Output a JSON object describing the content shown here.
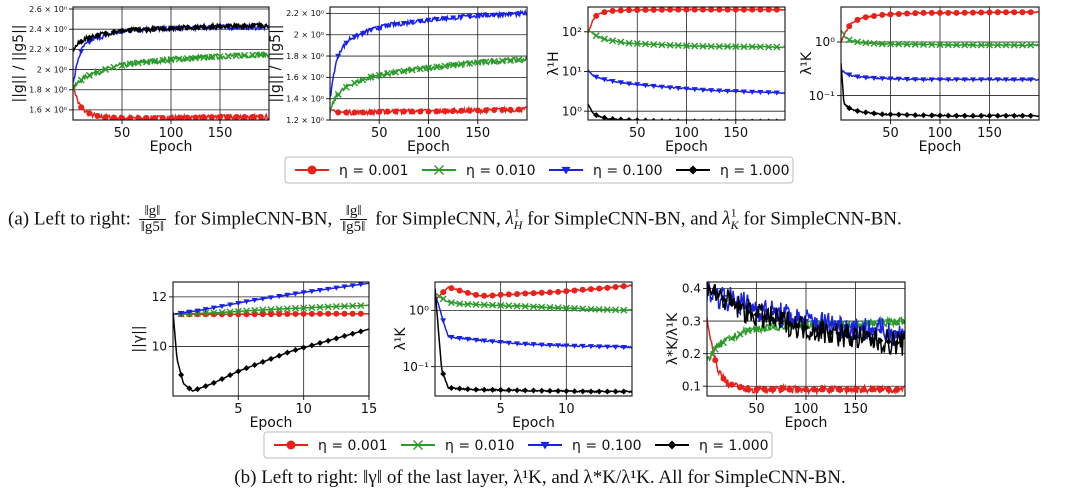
{
  "legend": {
    "entries": [
      {
        "label": "η = 0.001",
        "color": "#e8211a",
        "marker": "circle"
      },
      {
        "label": "η = 0.010",
        "color": "#2a9a2a",
        "marker": "x"
      },
      {
        "label": "η = 0.100",
        "color": "#1a22e6",
        "marker": "triangle-down"
      },
      {
        "label": "η = 1.000",
        "color": "#000000",
        "marker": "diamond"
      }
    ]
  },
  "caption_a": {
    "prefix": "(a) Left to right:",
    "num": "‖g‖",
    "den": "‖g5‖",
    "t1": "for SimpleCNN-BN,",
    "t2": "for SimpleCNN,",
    "lamH": "λ",
    "lamH_sub": "H",
    "lamH_sup": "1",
    "t3": "for SimpleCNN-BN, and",
    "lamK": "λ",
    "lamK_sub": "K",
    "lamK_sup": "1",
    "t4": "for SimpleCNN-BN."
  },
  "caption_b": {
    "text": "(b) Left to right: ‖γ‖ of the last layer, λ¹K, and λ*K/λ¹K. All for SimpleCNN-BN."
  },
  "chart_data": [
    {
      "type": "line",
      "xlabel": "Epoch",
      "ylabel": "||g|| / ||g5||",
      "xlim": [
        0,
        200
      ],
      "ylim": [
        1.5,
        2.62
      ],
      "yscale": "linear",
      "grid": true,
      "xticks": [
        50,
        100,
        150
      ],
      "xtick_labels": [
        "50",
        "100",
        "150"
      ],
      "yticks": [
        1.6,
        1.8,
        2.0,
        2.2,
        2.4,
        2.6
      ],
      "ytick_labels": [
        "1.6 × 10⁰",
        "1.8 × 10⁰",
        "2 × 10⁰",
        "2.2 × 10⁰",
        "2.4 × 10⁰",
        "2.6 × 10⁰"
      ],
      "series": [
        {
          "color": "#e8211a",
          "x": [
            0,
            5,
            10,
            20,
            30,
            50,
            75,
            100,
            150,
            200
          ],
          "y": [
            1.85,
            1.68,
            1.6,
            1.55,
            1.53,
            1.52,
            1.52,
            1.52,
            1.53,
            1.53
          ]
        },
        {
          "color": "#2a9a2a",
          "x": [
            0,
            5,
            10,
            20,
            40,
            60,
            100,
            150,
            200
          ],
          "y": [
            1.8,
            1.87,
            1.91,
            1.96,
            2.02,
            2.06,
            2.1,
            2.13,
            2.15
          ]
        },
        {
          "color": "#1a22e6",
          "x": [
            0,
            5,
            10,
            20,
            40,
            60,
            100,
            150,
            200
          ],
          "y": [
            1.85,
            2.1,
            2.22,
            2.3,
            2.36,
            2.39,
            2.41,
            2.42,
            2.42
          ]
        },
        {
          "color": "#000000",
          "x": [
            0,
            5,
            10,
            20,
            40,
            60,
            100,
            150,
            200
          ],
          "y": [
            2.2,
            2.25,
            2.29,
            2.33,
            2.37,
            2.39,
            2.41,
            2.43,
            2.44
          ]
        }
      ]
    },
    {
      "type": "line",
      "xlabel": "Epoch",
      "ylabel": "||g|| / ||g5||",
      "xlim": [
        0,
        200
      ],
      "ylim": [
        1.2,
        2.26
      ],
      "yscale": "linear",
      "grid": true,
      "xticks": [
        50,
        100,
        150
      ],
      "xtick_labels": [
        "50",
        "100",
        "150"
      ],
      "yticks": [
        1.2,
        1.4,
        1.6,
        1.8,
        2.0,
        2.2
      ],
      "ytick_labels": [
        "1.2 × 10⁰",
        "1.4 × 10⁰",
        "1.6 × 10⁰",
        "1.8 × 10⁰",
        "2 × 10⁰",
        "2.2 × 10⁰"
      ],
      "series": [
        {
          "color": "#e8211a",
          "x": [
            0,
            10,
            30,
            60,
            100,
            150,
            200
          ],
          "y": [
            1.28,
            1.27,
            1.27,
            1.28,
            1.28,
            1.29,
            1.3
          ]
        },
        {
          "color": "#2a9a2a",
          "x": [
            0,
            5,
            10,
            20,
            40,
            60,
            100,
            150,
            200
          ],
          "y": [
            1.28,
            1.4,
            1.46,
            1.53,
            1.6,
            1.64,
            1.69,
            1.74,
            1.77
          ]
        },
        {
          "color": "#1a22e6",
          "x": [
            0,
            5,
            10,
            20,
            40,
            60,
            100,
            150,
            200
          ],
          "y": [
            1.4,
            1.7,
            1.85,
            1.96,
            2.04,
            2.09,
            2.14,
            2.18,
            2.2
          ]
        }
      ]
    },
    {
      "type": "line",
      "xlabel": "Epoch",
      "ylabel": "λ¹H",
      "xlim": [
        0,
        200
      ],
      "ylim": [
        0.6,
        420
      ],
      "yscale": "log",
      "grid": true,
      "xticks": [
        50,
        100,
        150
      ],
      "xtick_labels": [
        "50",
        "100",
        "150"
      ],
      "yticks": [
        1,
        10,
        100
      ],
      "ytick_labels": [
        "10⁰",
        "10¹",
        "10²"
      ],
      "series": [
        {
          "color": "#e8211a",
          "x": [
            0,
            5,
            10,
            20,
            40,
            80,
            120,
            160,
            200
          ],
          "y": [
            90,
            200,
            280,
            330,
            350,
            360,
            360,
            360,
            360
          ]
        },
        {
          "color": "#2a9a2a",
          "x": [
            0,
            10,
            20,
            40,
            80,
            120,
            160,
            200
          ],
          "y": [
            110,
            75,
            62,
            52,
            46,
            43,
            42,
            41
          ]
        },
        {
          "color": "#1a22e6",
          "x": [
            0,
            5,
            10,
            20,
            40,
            80,
            120,
            160,
            200
          ],
          "y": [
            11,
            8,
            7,
            6,
            5,
            4,
            3.4,
            3.1,
            2.9
          ]
        },
        {
          "color": "#000000",
          "x": [
            0,
            5,
            10,
            20,
            40,
            80,
            120,
            160,
            200
          ],
          "y": [
            1.5,
            0.9,
            0.75,
            0.65,
            0.6,
            0.56,
            0.55,
            0.55,
            0.55
          ]
        }
      ]
    },
    {
      "type": "line",
      "xlabel": "Epoch",
      "ylabel": "λ¹K",
      "xlim": [
        0,
        200
      ],
      "ylim": [
        0.035,
        4.5
      ],
      "yscale": "log",
      "grid": true,
      "xticks": [
        50,
        100,
        150
      ],
      "xtick_labels": [
        "50",
        "100",
        "150"
      ],
      "yticks": [
        0.1,
        1
      ],
      "ytick_labels": [
        "10⁻¹",
        "10⁰"
      ],
      "series": [
        {
          "color": "#e8211a",
          "x": [
            0,
            5,
            10,
            20,
            40,
            80,
            120,
            160,
            200
          ],
          "y": [
            1.0,
            1.6,
            2.2,
            2.8,
            3.2,
            3.5,
            3.5,
            3.6,
            3.6
          ]
        },
        {
          "color": "#2a9a2a",
          "x": [
            0,
            5,
            10,
            20,
            40,
            80,
            120,
            160,
            200
          ],
          "y": [
            1.6,
            1.2,
            1.05,
            0.98,
            0.92,
            0.9,
            0.88,
            0.88,
            0.87
          ]
        },
        {
          "color": "#1a22e6",
          "x": [
            0,
            5,
            10,
            20,
            40,
            80,
            120,
            160,
            200
          ],
          "y": [
            0.3,
            0.26,
            0.24,
            0.22,
            0.21,
            0.2,
            0.2,
            0.2,
            0.2
          ]
        },
        {
          "color": "#000000",
          "x": [
            0,
            3,
            10,
            20,
            40,
            80,
            120,
            160,
            200
          ],
          "y": [
            0.4,
            0.07,
            0.055,
            0.05,
            0.045,
            0.043,
            0.042,
            0.042,
            0.042
          ]
        }
      ]
    },
    {
      "type": "line",
      "xlabel": "Epoch",
      "ylabel": "||γ||",
      "xlim": [
        0,
        15
      ],
      "ylim": [
        8.0,
        12.6
      ],
      "yscale": "linear",
      "grid": true,
      "xticks": [
        5,
        10,
        15
      ],
      "xtick_labels": [
        "5",
        "10",
        "15"
      ],
      "yticks": [
        10,
        12
      ],
      "ytick_labels": [
        "10",
        "12"
      ],
      "series": [
        {
          "color": "#e8211a",
          "x": [
            0,
            3,
            6,
            9,
            12,
            15
          ],
          "y": [
            11.3,
            11.3,
            11.3,
            11.31,
            11.32,
            11.32
          ]
        },
        {
          "color": "#2a9a2a",
          "x": [
            0,
            3,
            6,
            9,
            12,
            15
          ],
          "y": [
            11.3,
            11.35,
            11.45,
            11.53,
            11.6,
            11.66
          ]
        },
        {
          "color": "#1a22e6",
          "x": [
            0,
            2,
            4,
            6,
            8,
            10,
            12,
            15
          ],
          "y": [
            11.3,
            11.45,
            11.65,
            11.85,
            12.02,
            12.18,
            12.33,
            12.55
          ]
        },
        {
          "color": "#000000",
          "x": [
            0,
            0.3,
            0.8,
            1.5,
            3,
            5,
            7,
            9,
            11,
            13,
            15
          ],
          "y": [
            11.4,
            9.5,
            8.5,
            8.2,
            8.5,
            9.0,
            9.4,
            9.8,
            10.1,
            10.4,
            10.7
          ]
        }
      ]
    },
    {
      "type": "line",
      "xlabel": "Epoch",
      "ylabel": "λ¹K",
      "xlim": [
        0,
        15
      ],
      "ylim": [
        0.03,
        3.2
      ],
      "yscale": "log",
      "grid": true,
      "xticks": [
        5,
        10
      ],
      "xtick_labels": [
        "5",
        "10"
      ],
      "yticks": [
        0.1,
        1
      ],
      "ytick_labels": [
        "10⁻¹",
        "10⁰"
      ],
      "series": [
        {
          "color": "#e8211a",
          "x": [
            0,
            1,
            2,
            3,
            4,
            5,
            7,
            9,
            11,
            13,
            15
          ],
          "y": [
            1.5,
            2.6,
            2.2,
            1.9,
            1.8,
            1.9,
            2.0,
            2.1,
            2.3,
            2.5,
            2.8
          ]
        },
        {
          "color": "#2a9a2a",
          "x": [
            0,
            1,
            2,
            4,
            6,
            8,
            10,
            12,
            15
          ],
          "y": [
            2.0,
            1.4,
            1.3,
            1.25,
            1.2,
            1.15,
            1.1,
            1.05,
            1.0
          ]
        },
        {
          "color": "#1a22e6",
          "x": [
            0,
            1,
            3,
            6,
            9,
            12,
            15
          ],
          "y": [
            2.0,
            0.34,
            0.3,
            0.26,
            0.24,
            0.23,
            0.22
          ]
        },
        {
          "color": "#000000",
          "x": [
            0,
            0.5,
            1,
            3,
            6,
            9,
            12,
            15
          ],
          "y": [
            2.5,
            0.09,
            0.042,
            0.039,
            0.038,
            0.037,
            0.036,
            0.036
          ]
        }
      ]
    },
    {
      "type": "line",
      "xlabel": "Epoch",
      "ylabel": "λ*K/λ¹K",
      "xlim": [
        0,
        200
      ],
      "ylim": [
        0.07,
        0.42
      ],
      "yscale": "linear",
      "grid": true,
      "xticks": [
        50,
        100,
        150
      ],
      "xtick_labels": [
        "50",
        "100",
        "150"
      ],
      "yticks": [
        0.1,
        0.2,
        0.3,
        0.4
      ],
      "ytick_labels": [
        "0.1",
        "0.2",
        "0.3",
        "0.4"
      ],
      "series": [
        {
          "color": "#e8211a",
          "x": [
            0,
            5,
            10,
            15,
            20,
            30,
            40,
            60,
            100,
            150,
            200
          ],
          "y": [
            0.3,
            0.22,
            0.16,
            0.13,
            0.11,
            0.1,
            0.09,
            0.09,
            0.09,
            0.09,
            0.09
          ]
        },
        {
          "color": "#2a9a2a",
          "x": [
            0,
            5,
            10,
            20,
            40,
            60,
            100,
            150,
            200
          ],
          "y": [
            0.18,
            0.2,
            0.22,
            0.24,
            0.27,
            0.28,
            0.29,
            0.29,
            0.3
          ]
        },
        {
          "color": "#1a22e6",
          "x": [
            0,
            5,
            10,
            20,
            40,
            60,
            100,
            150,
            200
          ],
          "y": [
            0.4,
            0.39,
            0.38,
            0.37,
            0.35,
            0.33,
            0.3,
            0.28,
            0.26
          ]
        },
        {
          "color": "#000000",
          "x": [
            0,
            5,
            10,
            20,
            40,
            60,
            100,
            150,
            200
          ],
          "y": [
            0.42,
            0.4,
            0.38,
            0.36,
            0.33,
            0.31,
            0.28,
            0.25,
            0.23
          ]
        }
      ]
    }
  ]
}
